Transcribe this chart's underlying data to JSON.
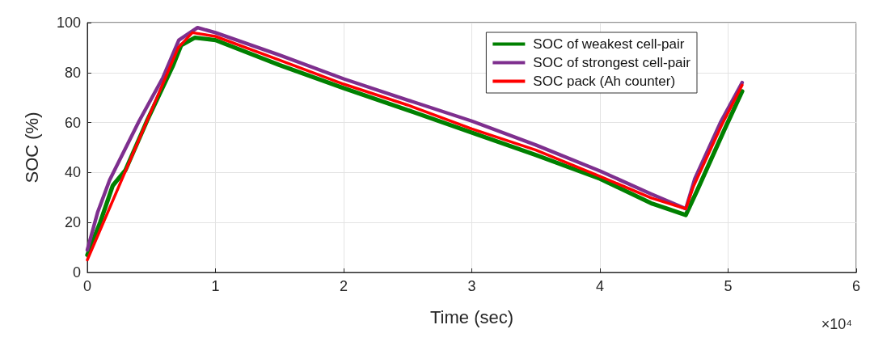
{
  "chart_data": {
    "type": "line",
    "xlabel": "Time (sec)",
    "ylabel": "SOC (%)",
    "xlim": [
      0,
      6
    ],
    "xticks": [
      0,
      1,
      2,
      3,
      4,
      5,
      6
    ],
    "ylim": [
      0,
      100
    ],
    "yticks": [
      0,
      20,
      40,
      60,
      80,
      100
    ],
    "annotations": [
      "×10⁴"
    ],
    "grid": true,
    "legend": "top right",
    "line_style": "solid",
    "marker": "none",
    "series": [
      {
        "name": "SOC of weakest cell-pair",
        "color": "#008000",
        "x": [
          0,
          0.1,
          0.199,
          0.298,
          0.465,
          0.67,
          0.733,
          0.84,
          1,
          1.5,
          2,
          2.5,
          3,
          3.5,
          4,
          4.4,
          4.67,
          4.76,
          4.97,
          5.11
        ],
        "values": [
          7,
          20,
          34.8,
          41,
          60.6,
          83,
          91,
          94,
          93,
          83,
          73.8,
          65,
          56,
          47,
          37.5,
          27.7,
          23,
          33,
          57,
          72.5
        ]
      },
      {
        "name": "SOC of strongest cell-pair",
        "color": "#7e2f8e",
        "x": [
          0,
          0.08,
          0.174,
          0.404,
          0.59,
          0.714,
          0.86,
          1,
          1.5,
          2,
          2.5,
          3,
          3.5,
          4,
          4.4,
          4.67,
          4.74,
          4.94,
          5.11
        ],
        "values": [
          9,
          24,
          37,
          60.6,
          78,
          93,
          98,
          96,
          87,
          77.5,
          69,
          60.6,
          51,
          40.6,
          31.4,
          25.5,
          37.5,
          60,
          76
        ]
      },
      {
        "name": "SOC pack (Ah counter)",
        "color": "#ff0000",
        "x": [
          0,
          0.465,
          0.71,
          0.82,
          1,
          1.5,
          2,
          2.5,
          3,
          3.5,
          4,
          4.4,
          4.67,
          4.73,
          4.95,
          5.11
        ],
        "values": [
          5,
          60.6,
          90,
          96,
          94.5,
          85,
          75.4,
          67,
          57.5,
          49,
          38.5,
          29.8,
          25.5,
          34.5,
          59,
          75
        ]
      }
    ]
  }
}
